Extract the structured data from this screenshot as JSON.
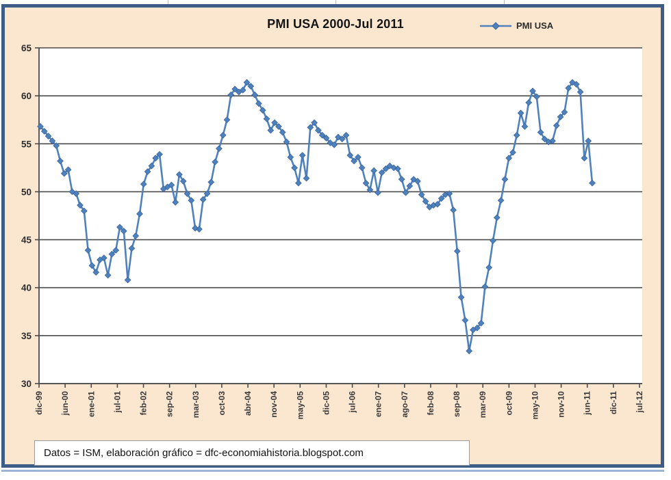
{
  "chart": {
    "title": "PMI USA 2000-Jul 2011",
    "legend_label": "PMI USA",
    "source_note": "Datos = ISM, elaboración gráfico = dfc-economiahistoria.blogspot.com"
  },
  "theme": {
    "line_color": "#4f81bd",
    "marker_edge_color": "#39659e",
    "background_color": "#fbe6d0",
    "plot_background": "#ffffff",
    "grid_color": "#4a4a4a",
    "frame_border_color": "#3e5c88",
    "label_color": "#3a3a3a"
  },
  "chart_data": {
    "type": "line",
    "title": "PMI USA 2000-Jul 2011",
    "series_name": "PMI USA",
    "frequency": "monthly",
    "start": "dic-99",
    "end": "jul-11",
    "xlabel": "",
    "ylabel": "",
    "ylim": [
      30,
      65
    ],
    "y_ticks": [
      65,
      60,
      55,
      50,
      45,
      40,
      35,
      30
    ],
    "x_tick_labels": [
      "dic-99",
      "jun-00",
      "ene-01",
      "jul-01",
      "feb-02",
      "sep-02",
      "mar-03",
      "oct-03",
      "abr-04",
      "nov-04",
      "may-05",
      "dic-05",
      "jul-06",
      "ene-07",
      "ago-07",
      "feb-08",
      "sep-08",
      "mar-09",
      "oct-09",
      "may-10",
      "nov-10",
      "jun-11",
      "dic-11",
      "jul-12"
    ],
    "grid": true,
    "legend_position": "top-right",
    "values": [
      56.8,
      56.3,
      55.8,
      55.3,
      54.8,
      53.2,
      51.9,
      52.3,
      50.0,
      49.8,
      48.6,
      48.0,
      43.9,
      42.3,
      41.6,
      42.9,
      43.1,
      41.3,
      43.5,
      43.9,
      46.3,
      45.9,
      40.8,
      44.1,
      45.4,
      47.7,
      50.8,
      52.1,
      52.7,
      53.5,
      53.9,
      50.3,
      50.5,
      50.7,
      48.9,
      51.8,
      51.1,
      49.8,
      49.1,
      46.2,
      46.1,
      49.2,
      49.8,
      51.0,
      53.1,
      54.5,
      55.9,
      57.5,
      60.1,
      60.7,
      60.4,
      60.6,
      61.4,
      61.0,
      60.1,
      59.2,
      58.5,
      57.6,
      56.4,
      57.2,
      56.8,
      56.2,
      55.2,
      53.6,
      52.5,
      50.9,
      53.8,
      51.4,
      56.7,
      57.2,
      56.4,
      55.9,
      55.6,
      55.1,
      54.9,
      55.7,
      55.5,
      55.9,
      53.8,
      53.2,
      53.6,
      52.5,
      50.9,
      50.2,
      52.2,
      49.9,
      52.0,
      52.4,
      52.7,
      52.5,
      52.4,
      51.3,
      49.9,
      50.6,
      51.3,
      51.1,
      49.7,
      49.0,
      48.4,
      48.6,
      48.7,
      49.3,
      49.7,
      49.8,
      48.1,
      43.8,
      39.0,
      36.6,
      33.4,
      35.6,
      35.8,
      36.3,
      40.1,
      42.1,
      44.9,
      47.3,
      49.1,
      51.3,
      53.5,
      54.1,
      55.9,
      58.2,
      56.8,
      59.3,
      60.5,
      59.9,
      56.2,
      55.5,
      55.2,
      55.3,
      56.9,
      57.8,
      58.3,
      60.8,
      61.4,
      61.2,
      60.4,
      53.5,
      55.3,
      50.9
    ]
  }
}
